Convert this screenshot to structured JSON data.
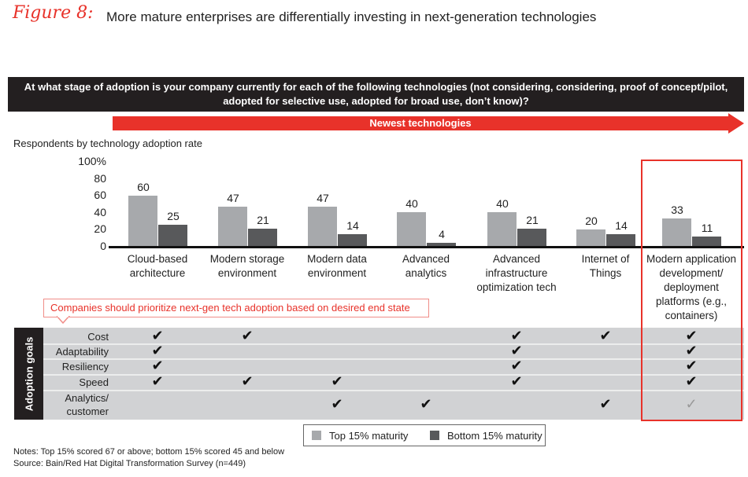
{
  "figure_label": "Figure 8:",
  "figure_title": "More mature enterprises are differentially investing in next-generation technologies",
  "question": "At what stage of adoption is your company currently for each of the following technologies (not considering, considering, proof of concept/pilot, adopted for selective use, adopted for broad use, don’t know)?",
  "arrow_label": "Newest technologies",
  "callout": "Companies should prioritize next-gen tech adoption based on desired end state",
  "colors": {
    "top": "#a7a9ac",
    "bottom": "#58595b",
    "accent": "#e8322a"
  },
  "chart_data": {
    "type": "bar",
    "subtitle": "Respondents by technology adoption rate",
    "ylim": [
      0,
      100
    ],
    "yticks": [
      "100%",
      "80",
      "60",
      "40",
      "20",
      "0"
    ],
    "categories": [
      [
        "Cloud-based",
        "architecture"
      ],
      [
        "Modern storage",
        "environment"
      ],
      [
        "Modern data",
        "environment"
      ],
      [
        "Advanced",
        "analytics"
      ],
      [
        "Advanced",
        "infrastructure",
        "optimization tech"
      ],
      [
        "Internet of",
        "Things"
      ],
      [
        "Modern application",
        "development/",
        "deployment",
        "platforms (e.g.,",
        "containers)"
      ]
    ],
    "series": [
      {
        "name": "Top 15% maturity",
        "values": [
          60,
          47,
          47,
          40,
          40,
          20,
          33
        ]
      },
      {
        "name": "Bottom 15% maturity",
        "values": [
          25,
          21,
          14,
          4,
          21,
          14,
          11
        ]
      }
    ],
    "legend_position": "bottom",
    "highlighted_category": 6
  },
  "adoption_goals": {
    "title": "Adoption goals",
    "rows": [
      {
        "label": [
          "Cost"
        ],
        "checks": [
          1,
          1,
          0,
          0,
          1,
          1,
          1
        ]
      },
      {
        "label": [
          "Adaptability"
        ],
        "checks": [
          1,
          0,
          0,
          0,
          1,
          0,
          1
        ]
      },
      {
        "label": [
          "Resiliency"
        ],
        "checks": [
          1,
          0,
          0,
          0,
          1,
          0,
          1
        ]
      },
      {
        "label": [
          "Speed"
        ],
        "checks": [
          1,
          1,
          1,
          0,
          1,
          0,
          1
        ]
      },
      {
        "label": [
          "Analytics/",
          "customer"
        ],
        "checks": [
          0,
          0,
          1,
          1,
          0,
          1,
          2
        ]
      }
    ],
    "check_legend": {
      "1": "check-icon",
      "2": "outline-check-icon"
    }
  },
  "notes": "Notes: Top 15% scored 67 or above; bottom 15% scored 45 and below",
  "source": "Source: Bain/Red Hat Digital Transformation Survey (n=449)"
}
